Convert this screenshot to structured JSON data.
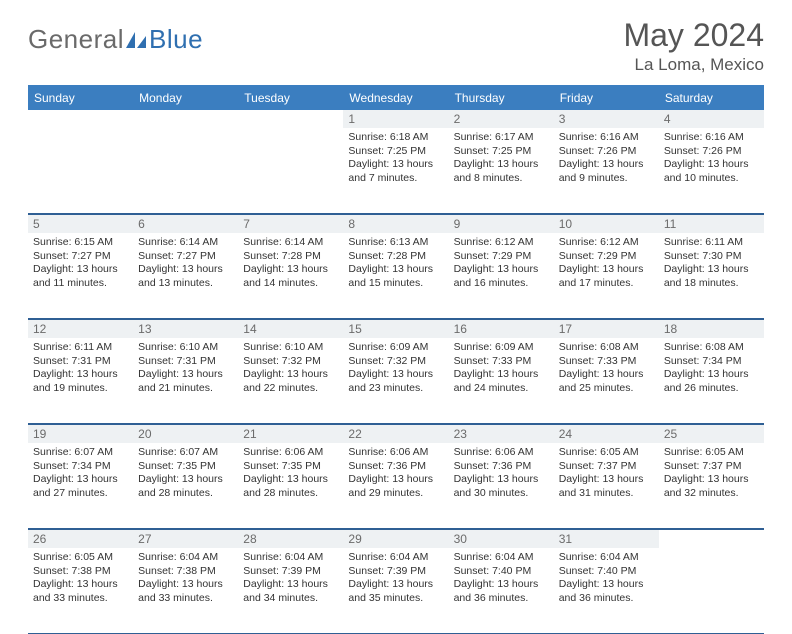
{
  "brand": {
    "left": "General",
    "right": "Blue"
  },
  "title": {
    "month": "May 2024",
    "location": "La Loma, Mexico"
  },
  "colors": {
    "header_bg": "#3b7ec0",
    "header_text": "#ffffff",
    "daynum_bg": "#eef1f3",
    "daynum_text": "#6b6b6b",
    "rule": "#2f5f94",
    "body_text": "#333333",
    "brand_gray": "#6a6a6a",
    "brand_blue": "#2f6fb0"
  },
  "typography": {
    "title_fontsize": 32,
    "location_fontsize": 17,
    "dow_fontsize": 12,
    "daynum_fontsize": 12,
    "cell_fontsize": 10.5
  },
  "days_of_week": [
    "Sunday",
    "Monday",
    "Tuesday",
    "Wednesday",
    "Thursday",
    "Friday",
    "Saturday"
  ],
  "weeks": [
    [
      {
        "n": "",
        "lines": []
      },
      {
        "n": "",
        "lines": []
      },
      {
        "n": "",
        "lines": []
      },
      {
        "n": "1",
        "lines": [
          "Sunrise: 6:18 AM",
          "Sunset: 7:25 PM",
          "Daylight: 13 hours",
          "and 7 minutes."
        ]
      },
      {
        "n": "2",
        "lines": [
          "Sunrise: 6:17 AM",
          "Sunset: 7:25 PM",
          "Daylight: 13 hours",
          "and 8 minutes."
        ]
      },
      {
        "n": "3",
        "lines": [
          "Sunrise: 6:16 AM",
          "Sunset: 7:26 PM",
          "Daylight: 13 hours",
          "and 9 minutes."
        ]
      },
      {
        "n": "4",
        "lines": [
          "Sunrise: 6:16 AM",
          "Sunset: 7:26 PM",
          "Daylight: 13 hours",
          "and 10 minutes."
        ]
      }
    ],
    [
      {
        "n": "5",
        "lines": [
          "Sunrise: 6:15 AM",
          "Sunset: 7:27 PM",
          "Daylight: 13 hours",
          "and 11 minutes."
        ]
      },
      {
        "n": "6",
        "lines": [
          "Sunrise: 6:14 AM",
          "Sunset: 7:27 PM",
          "Daylight: 13 hours",
          "and 13 minutes."
        ]
      },
      {
        "n": "7",
        "lines": [
          "Sunrise: 6:14 AM",
          "Sunset: 7:28 PM",
          "Daylight: 13 hours",
          "and 14 minutes."
        ]
      },
      {
        "n": "8",
        "lines": [
          "Sunrise: 6:13 AM",
          "Sunset: 7:28 PM",
          "Daylight: 13 hours",
          "and 15 minutes."
        ]
      },
      {
        "n": "9",
        "lines": [
          "Sunrise: 6:12 AM",
          "Sunset: 7:29 PM",
          "Daylight: 13 hours",
          "and 16 minutes."
        ]
      },
      {
        "n": "10",
        "lines": [
          "Sunrise: 6:12 AM",
          "Sunset: 7:29 PM",
          "Daylight: 13 hours",
          "and 17 minutes."
        ]
      },
      {
        "n": "11",
        "lines": [
          "Sunrise: 6:11 AM",
          "Sunset: 7:30 PM",
          "Daylight: 13 hours",
          "and 18 minutes."
        ]
      }
    ],
    [
      {
        "n": "12",
        "lines": [
          "Sunrise: 6:11 AM",
          "Sunset: 7:31 PM",
          "Daylight: 13 hours",
          "and 19 minutes."
        ]
      },
      {
        "n": "13",
        "lines": [
          "Sunrise: 6:10 AM",
          "Sunset: 7:31 PM",
          "Daylight: 13 hours",
          "and 21 minutes."
        ]
      },
      {
        "n": "14",
        "lines": [
          "Sunrise: 6:10 AM",
          "Sunset: 7:32 PM",
          "Daylight: 13 hours",
          "and 22 minutes."
        ]
      },
      {
        "n": "15",
        "lines": [
          "Sunrise: 6:09 AM",
          "Sunset: 7:32 PM",
          "Daylight: 13 hours",
          "and 23 minutes."
        ]
      },
      {
        "n": "16",
        "lines": [
          "Sunrise: 6:09 AM",
          "Sunset: 7:33 PM",
          "Daylight: 13 hours",
          "and 24 minutes."
        ]
      },
      {
        "n": "17",
        "lines": [
          "Sunrise: 6:08 AM",
          "Sunset: 7:33 PM",
          "Daylight: 13 hours",
          "and 25 minutes."
        ]
      },
      {
        "n": "18",
        "lines": [
          "Sunrise: 6:08 AM",
          "Sunset: 7:34 PM",
          "Daylight: 13 hours",
          "and 26 minutes."
        ]
      }
    ],
    [
      {
        "n": "19",
        "lines": [
          "Sunrise: 6:07 AM",
          "Sunset: 7:34 PM",
          "Daylight: 13 hours",
          "and 27 minutes."
        ]
      },
      {
        "n": "20",
        "lines": [
          "Sunrise: 6:07 AM",
          "Sunset: 7:35 PM",
          "Daylight: 13 hours",
          "and 28 minutes."
        ]
      },
      {
        "n": "21",
        "lines": [
          "Sunrise: 6:06 AM",
          "Sunset: 7:35 PM",
          "Daylight: 13 hours",
          "and 28 minutes."
        ]
      },
      {
        "n": "22",
        "lines": [
          "Sunrise: 6:06 AM",
          "Sunset: 7:36 PM",
          "Daylight: 13 hours",
          "and 29 minutes."
        ]
      },
      {
        "n": "23",
        "lines": [
          "Sunrise: 6:06 AM",
          "Sunset: 7:36 PM",
          "Daylight: 13 hours",
          "and 30 minutes."
        ]
      },
      {
        "n": "24",
        "lines": [
          "Sunrise: 6:05 AM",
          "Sunset: 7:37 PM",
          "Daylight: 13 hours",
          "and 31 minutes."
        ]
      },
      {
        "n": "25",
        "lines": [
          "Sunrise: 6:05 AM",
          "Sunset: 7:37 PM",
          "Daylight: 13 hours",
          "and 32 minutes."
        ]
      }
    ],
    [
      {
        "n": "26",
        "lines": [
          "Sunrise: 6:05 AM",
          "Sunset: 7:38 PM",
          "Daylight: 13 hours",
          "and 33 minutes."
        ]
      },
      {
        "n": "27",
        "lines": [
          "Sunrise: 6:04 AM",
          "Sunset: 7:38 PM",
          "Daylight: 13 hours",
          "and 33 minutes."
        ]
      },
      {
        "n": "28",
        "lines": [
          "Sunrise: 6:04 AM",
          "Sunset: 7:39 PM",
          "Daylight: 13 hours",
          "and 34 minutes."
        ]
      },
      {
        "n": "29",
        "lines": [
          "Sunrise: 6:04 AM",
          "Sunset: 7:39 PM",
          "Daylight: 13 hours",
          "and 35 minutes."
        ]
      },
      {
        "n": "30",
        "lines": [
          "Sunrise: 6:04 AM",
          "Sunset: 7:40 PM",
          "Daylight: 13 hours",
          "and 36 minutes."
        ]
      },
      {
        "n": "31",
        "lines": [
          "Sunrise: 6:04 AM",
          "Sunset: 7:40 PM",
          "Daylight: 13 hours",
          "and 36 minutes."
        ]
      },
      {
        "n": "",
        "lines": []
      }
    ]
  ]
}
